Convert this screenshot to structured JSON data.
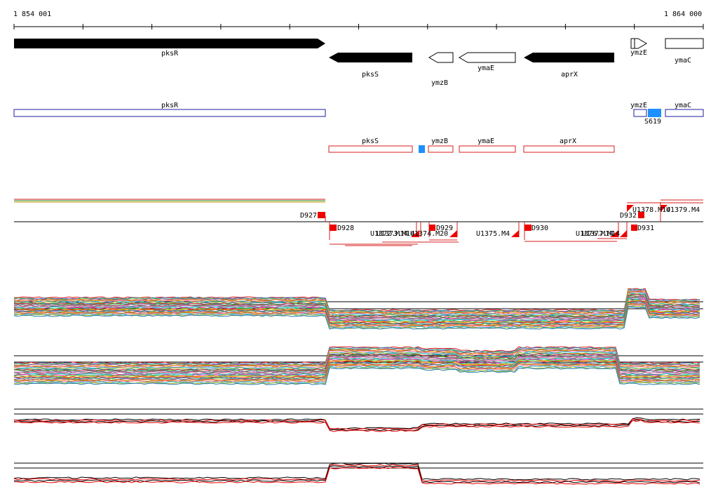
{
  "ruler": {
    "start_label": "1 854 001",
    "end_label": "1 864 000"
  },
  "genes": [
    {
      "name": "pksR",
      "strand": "+",
      "fill": "solid"
    },
    {
      "name": "pksS",
      "strand": "-",
      "fill": "solid"
    },
    {
      "name": "ymzB",
      "strand": "-",
      "fill": "open"
    },
    {
      "name": "ymaE",
      "strand": "-",
      "fill": "open"
    },
    {
      "name": "aprX",
      "strand": "-",
      "fill": "solid"
    },
    {
      "name": "ymzE",
      "strand": "+",
      "fill": "open"
    },
    {
      "name": "ymaC",
      "strand": "+",
      "fill": "open"
    }
  ],
  "forward_features": [
    {
      "name": "pksR"
    },
    {
      "name": "ymzE"
    },
    {
      "name": "S619"
    },
    {
      "name": "ymaC"
    }
  ],
  "reverse_features": [
    {
      "name": "pksS"
    },
    {
      "name": "ymzB"
    },
    {
      "name": "ymaE"
    },
    {
      "name": "aprX"
    }
  ],
  "segment_labels": [
    "D927",
    "D928",
    "U1372.M14",
    "U1373.M14",
    "U1374.M20",
    "D929",
    "U1375.M4",
    "D930",
    "U1376.M14",
    "U1377.M14",
    "D932",
    "U1378.M14",
    "U1379.M4",
    "D931"
  ],
  "colors": {
    "gene_solid": "#000000",
    "forward_box": "#1c1ca0",
    "reverse_box": "#d81c1c",
    "highlight": "#1e90ff",
    "segment": "#ee0000",
    "profile_a": "#000000",
    "profile_b": "#ee0000"
  }
}
